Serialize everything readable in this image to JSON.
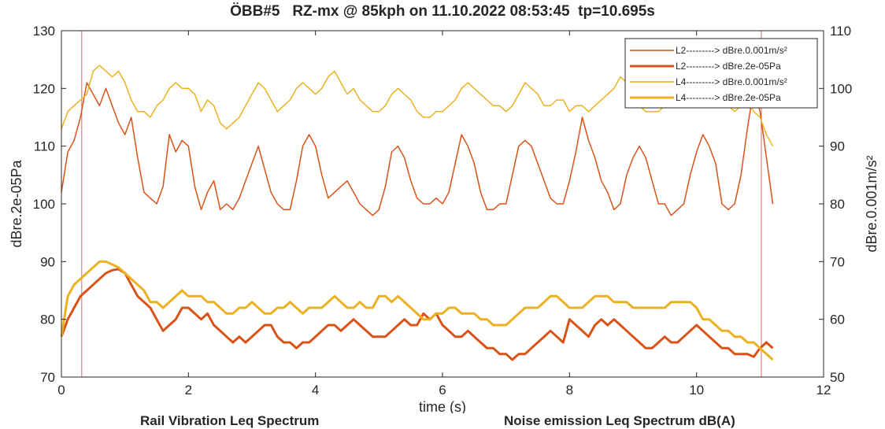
{
  "chart_data": {
    "type": "line",
    "title": "ÖBB#5   RZ-mx @ 85kph on 11.10.2022 08:53:45  tp=10.695s",
    "xlabel": "time (s)",
    "ylabel_left": "dBre.2e-05Pa",
    "ylabel_right": "dBre.0.001m/s²",
    "xlim": [
      0,
      12
    ],
    "ylim_left": [
      70,
      130
    ],
    "ylim_right": [
      50,
      110
    ],
    "x_ticks": [
      "0",
      "2",
      "4",
      "6",
      "8",
      "10",
      "12"
    ],
    "y_ticks_left": [
      "70",
      "80",
      "90",
      "100",
      "110",
      "120",
      "130"
    ],
    "y_ticks_right": [
      "50",
      "60",
      "70",
      "80",
      "90",
      "100",
      "110"
    ],
    "vertical_markers": [
      0.32,
      11.02
    ],
    "legend_position": "top-right",
    "series": [
      {
        "name": "L2---------> dBre.0.001m/s²",
        "axis": "right",
        "color": "#d95319",
        "line_width": "thin",
        "x": [
          0,
          0.1,
          0.2,
          0.3,
          0.4,
          0.5,
          0.6,
          0.7,
          0.8,
          0.9,
          1.0,
          1.1,
          1.2,
          1.3,
          1.4,
          1.5,
          1.6,
          1.7,
          1.8,
          1.9,
          2.0,
          2.1,
          2.2,
          2.3,
          2.4,
          2.5,
          2.6,
          2.7,
          2.8,
          2.9,
          3.0,
          3.1,
          3.2,
          3.3,
          3.4,
          3.5,
          3.6,
          3.7,
          3.8,
          3.9,
          4.0,
          4.1,
          4.2,
          4.3,
          4.4,
          4.5,
          4.6,
          4.7,
          4.8,
          4.9,
          5.0,
          5.1,
          5.2,
          5.3,
          5.4,
          5.5,
          5.6,
          5.7,
          5.8,
          5.9,
          6.0,
          6.1,
          6.2,
          6.3,
          6.4,
          6.5,
          6.6,
          6.7,
          6.8,
          6.9,
          7.0,
          7.1,
          7.2,
          7.3,
          7.4,
          7.5,
          7.6,
          7.7,
          7.8,
          7.9,
          8.0,
          8.1,
          8.2,
          8.3,
          8.4,
          8.5,
          8.6,
          8.7,
          8.8,
          8.9,
          9.0,
          9.1,
          9.2,
          9.3,
          9.4,
          9.5,
          9.6,
          9.7,
          9.8,
          9.9,
          10.0,
          10.1,
          10.2,
          10.3,
          10.4,
          10.5,
          10.6,
          10.7,
          10.8,
          10.9,
          11.0,
          11.1,
          11.2
        ],
        "values": [
          82,
          89,
          91,
          95,
          101,
          99,
          97,
          100,
          97,
          94,
          92,
          95,
          88,
          82,
          81,
          80,
          83,
          92,
          89,
          91,
          90,
          83,
          79,
          82,
          84,
          79,
          80,
          79,
          81,
          84,
          87,
          90,
          86,
          82,
          80,
          79,
          79,
          84,
          90,
          92,
          90,
          85,
          81,
          82,
          83,
          84,
          82,
          80,
          79,
          78,
          79,
          83,
          89,
          90,
          88,
          84,
          81,
          80,
          80,
          81,
          80,
          82,
          87,
          92,
          90,
          87,
          82,
          79,
          79,
          80,
          80,
          85,
          90,
          91,
          90,
          87,
          84,
          81,
          80,
          80,
          84,
          89,
          95,
          91,
          88,
          84,
          82,
          79,
          80,
          85,
          88,
          90,
          88,
          84,
          80,
          80,
          78,
          79,
          80,
          85,
          89,
          92,
          90,
          87,
          80,
          79,
          80,
          85,
          93,
          100,
          96,
          88,
          80
        ]
      },
      {
        "name": "L2---------> dBre.2e-05Pa",
        "axis": "left",
        "color": "#d95319",
        "line_width": "thick",
        "x": [
          0,
          0.1,
          0.2,
          0.3,
          0.4,
          0.5,
          0.6,
          0.7,
          0.8,
          0.9,
          1.0,
          1.1,
          1.2,
          1.3,
          1.4,
          1.5,
          1.6,
          1.7,
          1.8,
          1.9,
          2.0,
          2.1,
          2.2,
          2.3,
          2.4,
          2.5,
          2.6,
          2.7,
          2.8,
          2.9,
          3.0,
          3.1,
          3.2,
          3.3,
          3.4,
          3.5,
          3.6,
          3.7,
          3.8,
          3.9,
          4.0,
          4.1,
          4.2,
          4.3,
          4.4,
          4.5,
          4.6,
          4.7,
          4.8,
          4.9,
          5.0,
          5.1,
          5.2,
          5.3,
          5.4,
          5.5,
          5.6,
          5.7,
          5.8,
          5.9,
          6.0,
          6.1,
          6.2,
          6.3,
          6.4,
          6.5,
          6.6,
          6.7,
          6.8,
          6.9,
          7.0,
          7.1,
          7.2,
          7.3,
          7.4,
          7.5,
          7.6,
          7.7,
          7.8,
          7.9,
          8.0,
          8.1,
          8.2,
          8.3,
          8.4,
          8.5,
          8.6,
          8.7,
          8.8,
          8.9,
          9.0,
          9.1,
          9.2,
          9.3,
          9.4,
          9.5,
          9.6,
          9.7,
          9.8,
          9.9,
          10.0,
          10.1,
          10.2,
          10.3,
          10.4,
          10.5,
          10.6,
          10.7,
          10.8,
          10.9,
          11.0,
          11.1,
          11.2
        ],
        "values": [
          77,
          80,
          82,
          84,
          85,
          86,
          87,
          88,
          88.5,
          88.7,
          88,
          86,
          84,
          83,
          82,
          80,
          78,
          79,
          80,
          82,
          82,
          81,
          80,
          81,
          79,
          78,
          77,
          76,
          77,
          76,
          77,
          78,
          79,
          79,
          77,
          76,
          76,
          75,
          76,
          76,
          77,
          78,
          79,
          79,
          78,
          79,
          80,
          79,
          78,
          77,
          77,
          77,
          78,
          79,
          80,
          79,
          79,
          81,
          80,
          81,
          79,
          78,
          77,
          77,
          78,
          77,
          76,
          75,
          75,
          74,
          74,
          73,
          74,
          74,
          75,
          76,
          77,
          78,
          77,
          76,
          80,
          79,
          78,
          77,
          79,
          80,
          79,
          80,
          79,
          78,
          77,
          76,
          75,
          75,
          76,
          77,
          76,
          76,
          77,
          78,
          79,
          78,
          77,
          76,
          75,
          75,
          74,
          74,
          74,
          73.5,
          75,
          76,
          75
        ]
      },
      {
        "name": "L4---------> dBre.0.001m/s²",
        "axis": "right",
        "color": "#edb120",
        "line_width": "thin",
        "x": [
          0,
          0.1,
          0.2,
          0.3,
          0.4,
          0.5,
          0.6,
          0.7,
          0.8,
          0.9,
          1.0,
          1.1,
          1.2,
          1.3,
          1.4,
          1.5,
          1.6,
          1.7,
          1.8,
          1.9,
          2.0,
          2.1,
          2.2,
          2.3,
          2.4,
          2.5,
          2.6,
          2.7,
          2.8,
          2.9,
          3.0,
          3.1,
          3.2,
          3.3,
          3.4,
          3.5,
          3.6,
          3.7,
          3.8,
          3.9,
          4.0,
          4.1,
          4.2,
          4.3,
          4.4,
          4.5,
          4.6,
          4.7,
          4.8,
          4.9,
          5.0,
          5.1,
          5.2,
          5.3,
          5.4,
          5.5,
          5.6,
          5.7,
          5.8,
          5.9,
          6.0,
          6.1,
          6.2,
          6.3,
          6.4,
          6.5,
          6.6,
          6.7,
          6.8,
          6.9,
          7.0,
          7.1,
          7.2,
          7.3,
          7.4,
          7.5,
          7.6,
          7.7,
          7.8,
          7.9,
          8.0,
          8.1,
          8.2,
          8.3,
          8.4,
          8.5,
          8.6,
          8.7,
          8.8,
          8.9,
          9.0,
          9.1,
          9.2,
          9.3,
          9.4,
          9.5,
          9.6,
          9.7,
          9.8,
          9.9,
          10.0,
          10.1,
          10.2,
          10.3,
          10.4,
          10.5,
          10.6,
          10.7,
          10.8,
          10.9,
          11.0,
          11.1,
          11.2
        ],
        "values": [
          93,
          96,
          97,
          98,
          99,
          103,
          104,
          103,
          102,
          103,
          101,
          98,
          96,
          96,
          95,
          97,
          98,
          100,
          101,
          100,
          100,
          99,
          96,
          98,
          97,
          94,
          93,
          94,
          95,
          97,
          99,
          101,
          100,
          98,
          96,
          97,
          98,
          100,
          101,
          100,
          99,
          100,
          102,
          103,
          101,
          99,
          100,
          98,
          97,
          96,
          96,
          97,
          99,
          100,
          99,
          98,
          96,
          95,
          95,
          96,
          96,
          97,
          98,
          100,
          101,
          100,
          99,
          98,
          97,
          97,
          96,
          97,
          99,
          101,
          100,
          99,
          97,
          97,
          98,
          98,
          96,
          97,
          97,
          96,
          97,
          98,
          99,
          100,
          102,
          101,
          99,
          97,
          96,
          96,
          96,
          97,
          98,
          100,
          101,
          100,
          99,
          98,
          98,
          99,
          98,
          97,
          96,
          97,
          98,
          96,
          95,
          92,
          90
        ]
      },
      {
        "name": "L4---------> dBre.2e-05Pa",
        "axis": "left",
        "color": "#edb120",
        "line_width": "thick",
        "x": [
          0,
          0.1,
          0.2,
          0.3,
          0.4,
          0.5,
          0.6,
          0.7,
          0.8,
          0.9,
          1.0,
          1.1,
          1.2,
          1.3,
          1.4,
          1.5,
          1.6,
          1.7,
          1.8,
          1.9,
          2.0,
          2.1,
          2.2,
          2.3,
          2.4,
          2.5,
          2.6,
          2.7,
          2.8,
          2.9,
          3.0,
          3.1,
          3.2,
          3.3,
          3.4,
          3.5,
          3.6,
          3.7,
          3.8,
          3.9,
          4.0,
          4.1,
          4.2,
          4.3,
          4.4,
          4.5,
          4.6,
          4.7,
          4.8,
          4.9,
          5.0,
          5.1,
          5.2,
          5.3,
          5.4,
          5.5,
          5.6,
          5.7,
          5.8,
          5.9,
          6.0,
          6.1,
          6.2,
          6.3,
          6.4,
          6.5,
          6.6,
          6.7,
          6.8,
          6.9,
          7.0,
          7.1,
          7.2,
          7.3,
          7.4,
          7.5,
          7.6,
          7.7,
          7.8,
          7.9,
          8.0,
          8.1,
          8.2,
          8.3,
          8.4,
          8.5,
          8.6,
          8.7,
          8.8,
          8.9,
          9.0,
          9.1,
          9.2,
          9.3,
          9.4,
          9.5,
          9.6,
          9.7,
          9.8,
          9.9,
          10.0,
          10.1,
          10.2,
          10.3,
          10.4,
          10.5,
          10.6,
          10.7,
          10.8,
          10.9,
          11.0,
          11.1,
          11.2
        ],
        "values": [
          77,
          84,
          86,
          87,
          88,
          89,
          90,
          90,
          89.5,
          89,
          88,
          87,
          86,
          85,
          83,
          83,
          82,
          83,
          84,
          85,
          84,
          84,
          84,
          83,
          83,
          82,
          81,
          81,
          82,
          82,
          83,
          82,
          81,
          81,
          82,
          82,
          83,
          82,
          81,
          82,
          82,
          82,
          83,
          84,
          83,
          82,
          82,
          83,
          82,
          82,
          84,
          84,
          83,
          84,
          83,
          82,
          81,
          80,
          80,
          81,
          81,
          82,
          82,
          81,
          81,
          81,
          80,
          80,
          79,
          79,
          79,
          80,
          81,
          82,
          82,
          82,
          83,
          84,
          84,
          83,
          82,
          82,
          82,
          83,
          84,
          84,
          84,
          83,
          83,
          83,
          82,
          82,
          82,
          82,
          82,
          82,
          83,
          83,
          83,
          83,
          82,
          80,
          80,
          79,
          78,
          78,
          77,
          77,
          76,
          76,
          75,
          74,
          73
        ]
      }
    ]
  },
  "captions": {
    "left": "Rail Vibration Leq Spectrum",
    "right": "Noise emission Leq Spectrum dB(A)"
  }
}
